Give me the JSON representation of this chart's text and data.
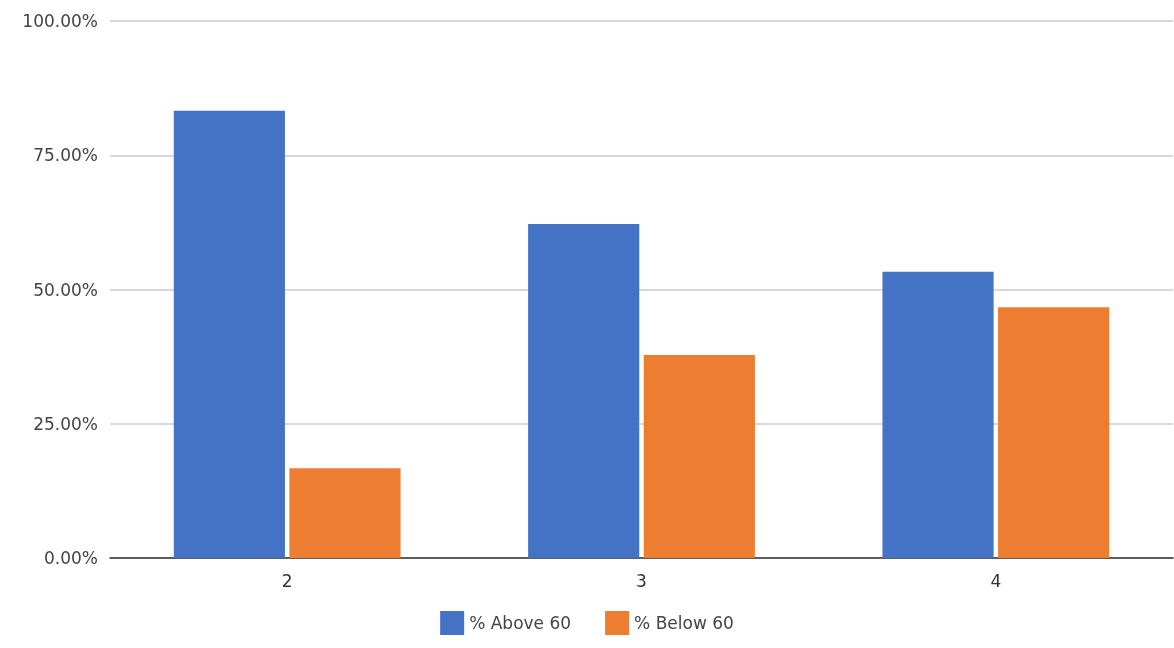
{
  "chart_data": {
    "type": "bar",
    "categories": [
      "2",
      "3",
      "4"
    ],
    "series": [
      {
        "name": "% Above 60",
        "color": "#4472c4",
        "values": [
          83.3,
          62.2,
          53.3
        ]
      },
      {
        "name": "% Below 60",
        "color": "#ed7d31",
        "values": [
          16.7,
          37.8,
          46.7
        ]
      }
    ],
    "ylim": [
      0,
      100
    ],
    "yticks": [
      {
        "value": 0,
        "label": "0.00%"
      },
      {
        "value": 25,
        "label": "25.00%"
      },
      {
        "value": 50,
        "label": "50.00%"
      },
      {
        "value": 75,
        "label": "75.00%"
      },
      {
        "value": 100,
        "label": "100.00%"
      }
    ],
    "grid": "y",
    "legend": "bottom"
  }
}
